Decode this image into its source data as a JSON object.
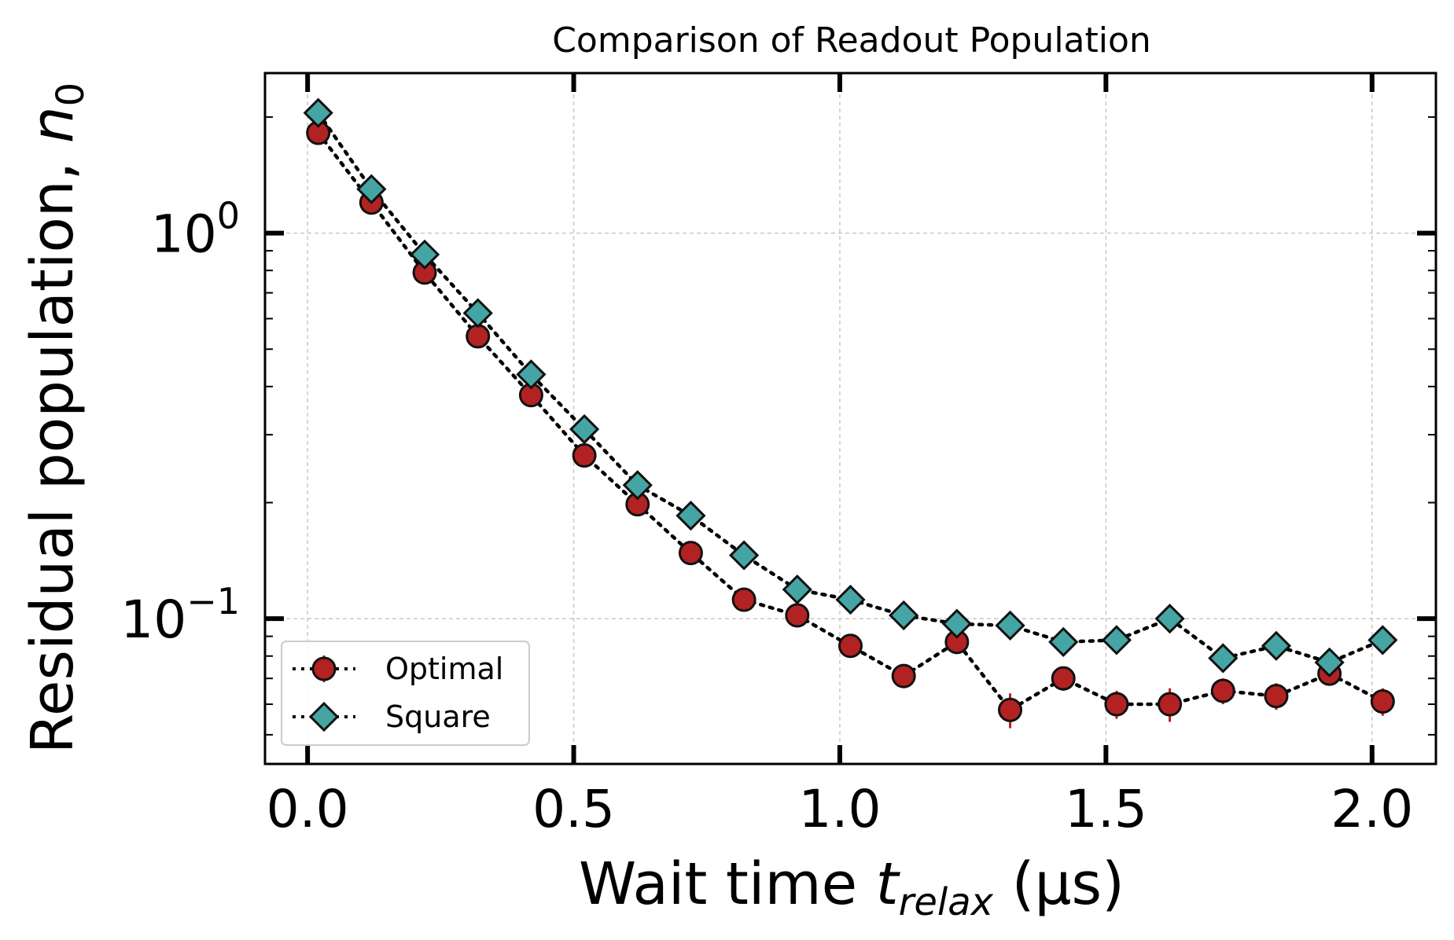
{
  "chart_data": {
    "type": "scatter",
    "title": "Comparison of Readout Population",
    "xlabel": "Wait time ",
    "xlabel_var": "t",
    "xlabel_sub": "relax",
    "xlabel_unit": " (µs)",
    "ylabel": "Residual population, ",
    "ylabel_var": "n",
    "ylabel_sub": "0",
    "yscale": "log",
    "xlim": [
      -0.08,
      2.12
    ],
    "ylim": [
      0.042,
      2.6
    ],
    "xticks": [
      0.0,
      0.5,
      1.0,
      1.5,
      2.0
    ],
    "xtick_labels": [
      "0.0",
      "0.5",
      "1.0",
      "1.5",
      "2.0"
    ],
    "ytick_base": "10",
    "yticks": [
      {
        "value": 1.0,
        "exponent": "0"
      },
      {
        "value": 0.1,
        "exponent": "−1"
      }
    ],
    "grid": true,
    "legend_position": "lower-left",
    "x": [
      0.02,
      0.12,
      0.22,
      0.32,
      0.42,
      0.52,
      0.62,
      0.72,
      0.82,
      0.92,
      1.02,
      1.12,
      1.22,
      1.32,
      1.42,
      1.52,
      1.62,
      1.72,
      1.82,
      1.92,
      2.02
    ],
    "series": [
      {
        "name": "Optimal",
        "marker": "circle",
        "color": "#b22222",
        "values": [
          1.82,
          1.2,
          0.79,
          0.54,
          0.38,
          0.265,
          0.198,
          0.148,
          0.112,
          0.102,
          0.085,
          0.071,
          0.087,
          0.058,
          0.07,
          0.06,
          0.06,
          0.065,
          0.063,
          0.072,
          0.061
        ],
        "yerr": [
          0,
          0,
          0,
          0,
          0,
          0,
          0,
          0,
          0,
          0,
          0.005,
          0.005,
          0.005,
          0.006,
          0.005,
          0.005,
          0.006,
          0.005,
          0.005,
          0.005,
          0.005
        ]
      },
      {
        "name": "Square",
        "marker": "diamond",
        "color": "#45a5a5",
        "values": [
          2.05,
          1.3,
          0.88,
          0.62,
          0.43,
          0.31,
          0.222,
          0.185,
          0.146,
          0.119,
          0.112,
          0.102,
          0.097,
          0.096,
          0.087,
          0.088,
          0.1,
          0.079,
          0.085,
          0.077,
          0.088
        ]
      }
    ]
  }
}
